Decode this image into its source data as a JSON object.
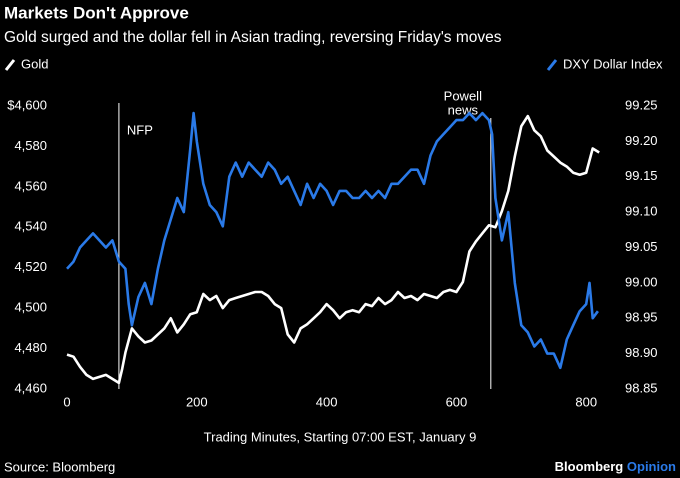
{
  "chart_data": {
    "type": "line",
    "title": "Markets Don't Approve",
    "subtitle": "Gold surged and the dollar fell in Asian trading, reversing Friday's moves",
    "x_label": "Trading Minutes, Starting 07:00 EST, January 9",
    "source": "Source: Bloomberg",
    "brand": "Bloomberg",
    "brand_suffix": "Opinion",
    "xlim": [
      -8,
      830
    ],
    "xticks": [
      0,
      200,
      400,
      600,
      800
    ],
    "ylim": [
      4460,
      4600
    ],
    "yticks": [
      {
        "value": 4460,
        "label": "4,460"
      },
      {
        "value": 4480,
        "label": "4,480"
      },
      {
        "value": 4500,
        "label": "4,500"
      },
      {
        "value": 4520,
        "label": "4,520"
      },
      {
        "value": 4540,
        "label": "4,540"
      },
      {
        "value": 4560,
        "label": "4,560"
      },
      {
        "value": 4580,
        "label": "4,580"
      },
      {
        "value": 4600,
        "label": "$4,600"
      }
    ],
    "y2lim": [
      98.85,
      99.25
    ],
    "y2ticks": [
      98.85,
      {
        "value": 98.9,
        "label": "98.90"
      },
      98.95,
      {
        "value": 99.0,
        "label": "99.00"
      },
      99.05,
      {
        "value": 99.1,
        "label": "99.10"
      },
      99.15,
      {
        "value": 99.2,
        "label": "99.20"
      },
      99.25
    ],
    "grid": false,
    "annotations": [
      {
        "x": 80,
        "label": [
          "NFP"
        ]
      },
      {
        "x": 653,
        "label": [
          "Powell",
          "news"
        ]
      }
    ],
    "series": [
      {
        "name": "Gold",
        "color": "#ffffff",
        "x": [
          0,
          10,
          20,
          30,
          40,
          50,
          60,
          70,
          80,
          85,
          90,
          100,
          110,
          120,
          130,
          140,
          150,
          160,
          170,
          180,
          190,
          200,
          210,
          220,
          230,
          240,
          250,
          260,
          270,
          280,
          290,
          300,
          310,
          320,
          330,
          340,
          350,
          360,
          370,
          380,
          390,
          400,
          410,
          420,
          430,
          440,
          450,
          460,
          470,
          480,
          490,
          500,
          510,
          520,
          530,
          540,
          550,
          560,
          570,
          580,
          590,
          600,
          610,
          620,
          630,
          640,
          650,
          660,
          670,
          680,
          690,
          700,
          710,
          720,
          730,
          740,
          750,
          760,
          770,
          780,
          790,
          800,
          810,
          820
        ],
        "values": [
          4477,
          4476,
          4471,
          4467,
          4465,
          4466,
          4467,
          4465,
          4463,
          4470,
          4478,
          4490,
          4486,
          4483,
          4484,
          4487,
          4490,
          4495,
          4488,
          4492,
          4497,
          4498,
          4507,
          4504,
          4506,
          4500,
          4504,
          4505,
          4506,
          4507,
          4508,
          4508,
          4506,
          4502,
          4500,
          4487,
          4483,
          4490,
          4492,
          4495,
          4498,
          4502,
          4499,
          4495,
          4498,
          4499,
          4498,
          4502,
          4501,
          4505,
          4502,
          4504,
          4508,
          4505,
          4506,
          4504,
          4507,
          4506,
          4505,
          4508,
          4509,
          4508,
          4513,
          4528,
          4533,
          4537,
          4541,
          4540,
          4548,
          4558,
          4575,
          4590,
          4595,
          4588,
          4585,
          4578,
          4575,
          4572,
          4570,
          4567,
          4566,
          4567,
          4579,
          4577
        ]
      },
      {
        "name": "DXY Dollar Index",
        "color": "#2a7ae8",
        "axis": "y2",
        "x": [
          0,
          10,
          20,
          30,
          40,
          50,
          60,
          70,
          80,
          90,
          95,
          100,
          110,
          120,
          130,
          140,
          150,
          160,
          170,
          180,
          190,
          195,
          200,
          210,
          220,
          230,
          240,
          250,
          260,
          270,
          280,
          290,
          300,
          310,
          320,
          330,
          340,
          350,
          360,
          370,
          380,
          390,
          400,
          410,
          420,
          430,
          440,
          450,
          460,
          470,
          480,
          490,
          500,
          510,
          520,
          530,
          540,
          550,
          560,
          570,
          580,
          590,
          600,
          610,
          620,
          630,
          640,
          650,
          655,
          660,
          670,
          680,
          690,
          700,
          710,
          720,
          730,
          740,
          750,
          760,
          770,
          780,
          790,
          800,
          805,
          810,
          818
        ],
        "values": [
          99.02,
          99.03,
          99.05,
          99.06,
          99.07,
          99.06,
          99.05,
          99.06,
          99.03,
          99.02,
          98.97,
          98.94,
          98.98,
          99.0,
          98.97,
          99.02,
          99.06,
          99.09,
          99.12,
          99.1,
          99.19,
          99.24,
          99.2,
          99.14,
          99.11,
          99.1,
          99.08,
          99.15,
          99.17,
          99.15,
          99.17,
          99.16,
          99.15,
          99.17,
          99.16,
          99.14,
          99.15,
          99.13,
          99.11,
          99.14,
          99.12,
          99.14,
          99.13,
          99.11,
          99.13,
          99.13,
          99.12,
          99.12,
          99.13,
          99.12,
          99.13,
          99.12,
          99.14,
          99.14,
          99.15,
          99.16,
          99.16,
          99.14,
          99.18,
          99.2,
          99.21,
          99.22,
          99.23,
          99.23,
          99.24,
          99.23,
          99.24,
          99.23,
          99.21,
          99.12,
          99.06,
          99.1,
          99.0,
          98.94,
          98.93,
          98.91,
          98.92,
          98.9,
          98.9,
          98.88,
          98.92,
          98.94,
          98.96,
          98.97,
          99.0,
          98.95,
          98.96
        ]
      }
    ]
  }
}
